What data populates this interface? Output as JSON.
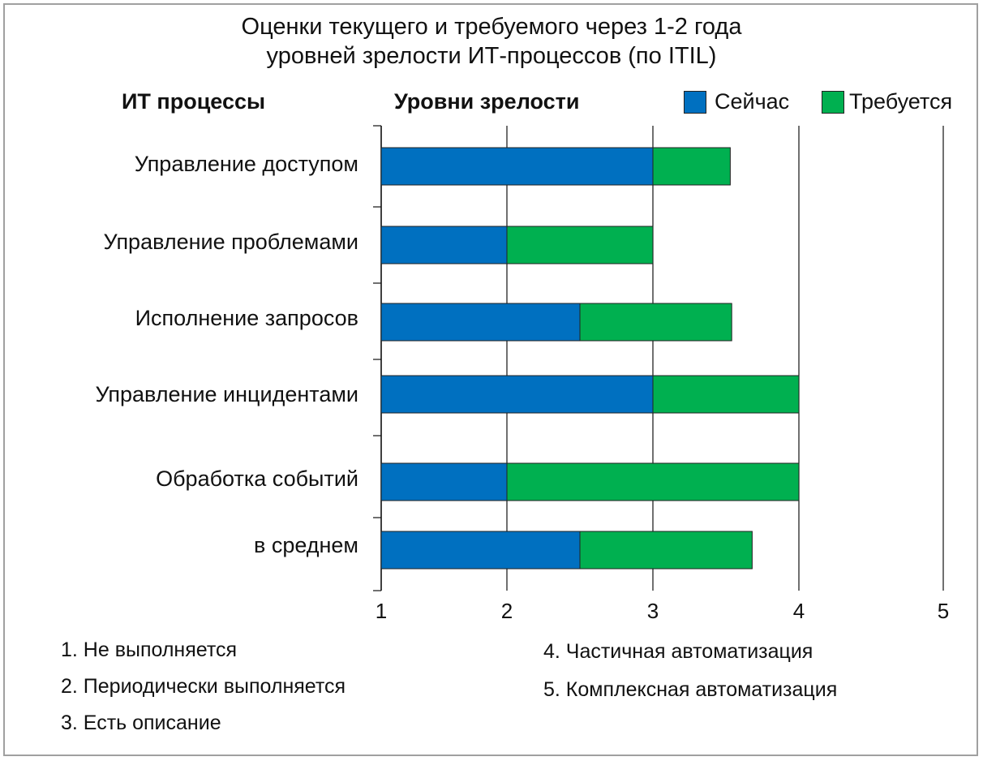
{
  "chart_data": {
    "type": "bar",
    "orientation": "horizontal",
    "stacked_ranges": true,
    "title_line1": "Оценки текущего и требуемого через 1-2 года",
    "title_line2": "уровней зрелости ИТ-процессов (по ITIL)",
    "y_header": "ИТ процессы",
    "x_header": "Уровни зрелости",
    "xlim": [
      1,
      5
    ],
    "x_ticks": [
      "1",
      "2",
      "3",
      "4",
      "5"
    ],
    "grid": "vertical",
    "legend_position": "top-right",
    "categories": [
      "Управление доступом",
      "Управление проблемами",
      "Исполнение запросов",
      "Управление инцидентами",
      "Обработка событий",
      "в среднем"
    ],
    "series": [
      {
        "name": "Сейчас",
        "color": "#0070c0",
        "values": [
          3,
          2,
          2.5,
          3,
          2,
          2.5
        ]
      },
      {
        "name": "Требуется",
        "color": "#00b050",
        "values": [
          3.53,
          3,
          3.54,
          4,
          4,
          3.68
        ]
      }
    ],
    "notes": [
      "1. Не выполняется",
      "2. Периодически выполняется",
      "3. Есть описание",
      "4. Частичная автоматизация",
      "5. Комплексная автоматизация"
    ]
  }
}
